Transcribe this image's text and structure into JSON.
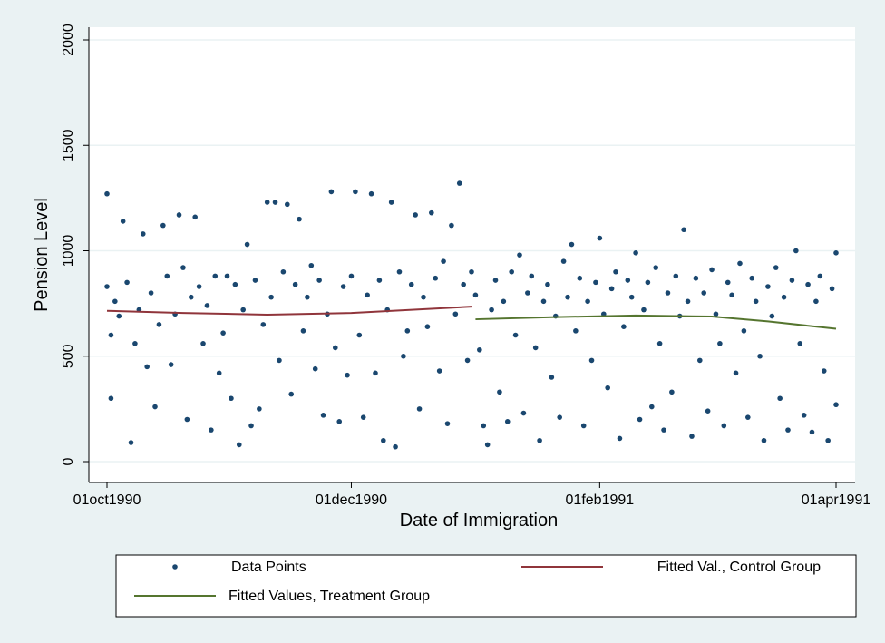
{
  "chart_data": {
    "type": "scatter",
    "x_label": "Date of Immigration",
    "y_label": "Pension Level",
    "xlim": [
      "1990-10-01",
      "1991-04-01"
    ],
    "ylim": [
      0,
      2000
    ],
    "xticks": [
      {
        "value": "1990-10-01",
        "label": "01oct1990"
      },
      {
        "value": "1990-12-01",
        "label": "01dec1990"
      },
      {
        "value": "1991-02-01",
        "label": "01feb1991"
      },
      {
        "value": "1991-04-01",
        "label": "01apr1991"
      }
    ],
    "yticks": [
      0,
      500,
      1000,
      1500,
      2000
    ],
    "grid": true,
    "legend": "bottom",
    "series": [
      {
        "name": "Data Points",
        "kind": "scatter",
        "color": "#1a476f",
        "x": [
          "1990-10-01",
          "1990-10-01",
          "1990-10-02",
          "1990-10-02",
          "1990-10-03",
          "1990-10-04",
          "1990-10-05",
          "1990-10-06",
          "1990-10-07",
          "1990-10-08",
          "1990-10-09",
          "1990-10-10",
          "1990-10-11",
          "1990-10-12",
          "1990-10-13",
          "1990-10-14",
          "1990-10-15",
          "1990-10-16",
          "1990-10-17",
          "1990-10-18",
          "1990-10-19",
          "1990-10-20",
          "1990-10-21",
          "1990-10-22",
          "1990-10-23",
          "1990-10-24",
          "1990-10-25",
          "1990-10-26",
          "1990-10-27",
          "1990-10-28",
          "1990-10-29",
          "1990-10-30",
          "1990-10-31",
          "1990-11-01",
          "1990-11-02",
          "1990-11-03",
          "1990-11-04",
          "1990-11-05",
          "1990-11-06",
          "1990-11-07",
          "1990-11-08",
          "1990-11-09",
          "1990-11-10",
          "1990-11-11",
          "1990-11-12",
          "1990-11-13",
          "1990-11-14",
          "1990-11-15",
          "1990-11-16",
          "1990-11-17",
          "1990-11-18",
          "1990-11-19",
          "1990-11-20",
          "1990-11-21",
          "1990-11-22",
          "1990-11-23",
          "1990-11-24",
          "1990-11-25",
          "1990-11-26",
          "1990-11-27",
          "1990-11-28",
          "1990-11-29",
          "1990-11-30",
          "1990-12-01",
          "1990-12-02",
          "1990-12-03",
          "1990-12-04",
          "1990-12-05",
          "1990-12-06",
          "1990-12-07",
          "1990-12-08",
          "1990-12-09",
          "1990-12-10",
          "1990-12-11",
          "1990-12-12",
          "1990-12-13",
          "1990-12-14",
          "1990-12-15",
          "1990-12-16",
          "1990-12-17",
          "1990-12-18",
          "1990-12-19",
          "1990-12-20",
          "1990-12-21",
          "1990-12-22",
          "1990-12-23",
          "1990-12-24",
          "1990-12-25",
          "1990-12-26",
          "1990-12-27",
          "1990-12-28",
          "1990-12-29",
          "1990-12-30",
          "1990-12-31",
          "1991-01-01",
          "1991-01-02",
          "1991-01-03",
          "1991-01-04",
          "1991-01-05",
          "1991-01-06",
          "1991-01-07",
          "1991-01-08",
          "1991-01-09",
          "1991-01-10",
          "1991-01-11",
          "1991-01-12",
          "1991-01-13",
          "1991-01-14",
          "1991-01-15",
          "1991-01-16",
          "1991-01-17",
          "1991-01-18",
          "1991-01-19",
          "1991-01-20",
          "1991-01-21",
          "1991-01-22",
          "1991-01-23",
          "1991-01-24",
          "1991-01-25",
          "1991-01-26",
          "1991-01-27",
          "1991-01-28",
          "1991-01-29",
          "1991-01-30",
          "1991-01-31",
          "1991-02-01",
          "1991-02-02",
          "1991-02-03",
          "1991-02-04",
          "1991-02-05",
          "1991-02-06",
          "1991-02-07",
          "1991-02-08",
          "1991-02-09",
          "1991-02-10",
          "1991-02-11",
          "1991-02-12",
          "1991-02-13",
          "1991-02-14",
          "1991-02-15",
          "1991-02-16",
          "1991-02-17",
          "1991-02-18",
          "1991-02-19",
          "1991-02-20",
          "1991-02-21",
          "1991-02-22",
          "1991-02-23",
          "1991-02-24",
          "1991-02-25",
          "1991-02-26",
          "1991-02-27",
          "1991-02-28",
          "1991-03-01",
          "1991-03-02",
          "1991-03-03",
          "1991-03-04",
          "1991-03-05",
          "1991-03-06",
          "1991-03-07",
          "1991-03-08",
          "1991-03-09",
          "1991-03-10",
          "1991-03-11",
          "1991-03-12",
          "1991-03-13",
          "1991-03-14",
          "1991-03-15",
          "1991-03-16",
          "1991-03-17",
          "1991-03-18",
          "1991-03-19",
          "1991-03-20",
          "1991-03-21",
          "1991-03-22",
          "1991-03-23",
          "1991-03-24",
          "1991-03-25",
          "1991-03-26",
          "1991-03-27",
          "1991-03-28",
          "1991-03-29",
          "1991-03-30",
          "1991-03-31",
          "1991-04-01",
          "1991-04-01"
        ],
        "values": [
          830,
          1270,
          600,
          300,
          760,
          690,
          1140,
          850,
          90,
          560,
          720,
          1080,
          450,
          800,
          260,
          650,
          1120,
          880,
          460,
          700,
          1170,
          920,
          200,
          780,
          1160,
          830,
          560,
          740,
          150,
          880,
          420,
          610,
          880,
          300,
          840,
          80,
          720,
          1030,
          170,
          860,
          250,
          650,
          1230,
          780,
          1230,
          480,
          900,
          1220,
          320,
          840,
          1150,
          620,
          780,
          930,
          440,
          860,
          220,
          700,
          1280,
          540,
          190,
          830,
          410,
          880,
          1280,
          600,
          210,
          790,
          1270,
          420,
          860,
          100,
          720,
          1230,
          70,
          900,
          500,
          620,
          840,
          1170,
          250,
          780,
          640,
          1180,
          870,
          430,
          950,
          180,
          1120,
          700,
          1320,
          840,
          480,
          900,
          790,
          530,
          170,
          80,
          720,
          860,
          330,
          760,
          190,
          900,
          600,
          980,
          230,
          800,
          880,
          540,
          100,
          760,
          840,
          400,
          690,
          210,
          950,
          780,
          1030,
          620,
          870,
          170,
          760,
          480,
          850,
          1060,
          700,
          350,
          820,
          900,
          110,
          640,
          860,
          780,
          990,
          200,
          720,
          850,
          260,
          920,
          560,
          150,
          800,
          330,
          880,
          690,
          1100,
          760,
          120,
          870,
          480,
          800,
          240,
          910,
          700,
          560,
          170,
          850,
          790,
          420,
          940,
          620,
          210,
          870,
          760,
          500,
          100,
          830,
          690,
          920,
          300,
          780,
          150,
          860,
          1000,
          560,
          220,
          840,
          140,
          760,
          880,
          430,
          100,
          820,
          990,
          270
        ]
      },
      {
        "name": "Fitted Val., Control Group",
        "kind": "line",
        "color": "#90353b",
        "x": [
          "1990-10-01",
          "1990-10-20",
          "1990-11-10",
          "1990-12-01",
          "1990-12-31"
        ],
        "values": [
          715,
          705,
          697,
          705,
          735
        ]
      },
      {
        "name": "Fitted Values, Treatment Group",
        "kind": "line",
        "color": "#55752f",
        "x": [
          "1991-01-01",
          "1991-01-20",
          "1991-02-10",
          "1991-03-01",
          "1991-03-15",
          "1991-04-01"
        ],
        "values": [
          675,
          685,
          693,
          688,
          665,
          630
        ]
      }
    ]
  }
}
